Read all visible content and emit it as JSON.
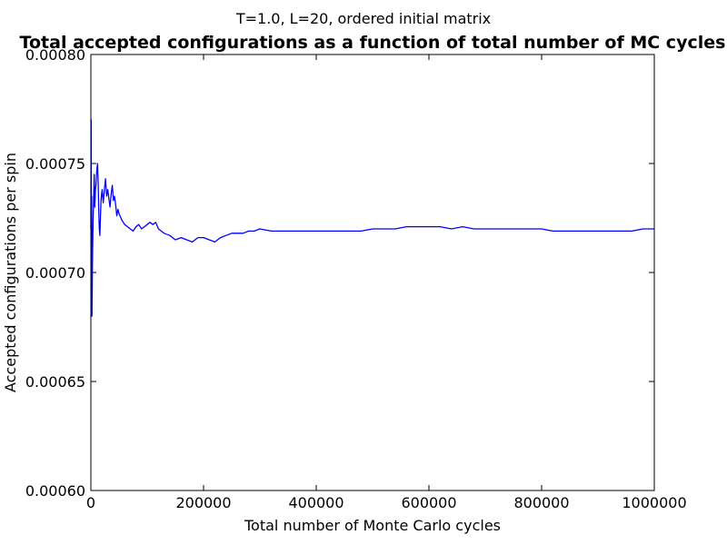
{
  "chart_data": {
    "type": "line",
    "suptitle": "T=1.0, L=20, ordered initial matrix",
    "title": "Total accepted configurations as a function of total number of MC cycles",
    "xlabel": "Total number of Monte Carlo cycles",
    "ylabel": "Accepted configurations per spin",
    "xlim": [
      0,
      1000000
    ],
    "ylim": [
      0.0006,
      0.0008
    ],
    "xticks": [
      0,
      200000,
      400000,
      600000,
      800000,
      1000000
    ],
    "xtick_labels": [
      "0",
      "200000",
      "400000",
      "600000",
      "800000",
      "1000000"
    ],
    "yticks": [
      0.0006,
      0.00065,
      0.0007,
      0.00075,
      0.0008
    ],
    "ytick_labels": [
      "0.00060",
      "0.00065",
      "0.00070",
      "0.00075",
      "0.00080"
    ],
    "grid": false,
    "line_color": "#0000ff",
    "series": [
      {
        "x": [
          0,
          500,
          1000,
          1500,
          2000,
          3000,
          4000,
          5000,
          6000,
          7000,
          8000,
          9000,
          10000,
          11000,
          12000,
          13000,
          14000,
          15000,
          16000,
          17000,
          18000,
          19000,
          20000,
          22000,
          24000,
          26000,
          28000,
          30000,
          32000,
          34000,
          36000,
          38000,
          40000,
          42000,
          44000,
          46000,
          48000,
          50000,
          55000,
          60000,
          65000,
          70000,
          75000,
          80000,
          85000,
          90000,
          95000,
          100000,
          105000,
          110000,
          115000,
          120000,
          130000,
          140000,
          150000,
          160000,
          170000,
          180000,
          190000,
          200000,
          210000,
          220000,
          230000,
          240000,
          250000,
          260000,
          270000,
          280000,
          290000,
          300000,
          320000,
          340000,
          360000,
          380000,
          400000,
          420000,
          440000,
          460000,
          480000,
          500000,
          520000,
          540000,
          560000,
          580000,
          600000,
          620000,
          640000,
          660000,
          680000,
          700000,
          720000,
          740000,
          760000,
          780000,
          800000,
          820000,
          840000,
          860000,
          880000,
          900000,
          920000,
          940000,
          960000,
          980000,
          1000000
        ],
        "y": [
          0.00072,
          0.00077,
          0.00068,
          0.000735,
          0.00068,
          0.00071,
          0.000725,
          0.000735,
          0.000745,
          0.00073,
          0.000738,
          0.00074,
          0.000745,
          0.000748,
          0.00075,
          0.00074,
          0.000728,
          0.00072,
          0.000717,
          0.000725,
          0.000733,
          0.000736,
          0.000738,
          0.000732,
          0.000738,
          0.000743,
          0.000735,
          0.000738,
          0.000734,
          0.00073,
          0.000736,
          0.00074,
          0.000733,
          0.000735,
          0.000731,
          0.000726,
          0.000729,
          0.000727,
          0.000724,
          0.000722,
          0.000721,
          0.00072,
          0.000719,
          0.000721,
          0.000722,
          0.00072,
          0.000721,
          0.000722,
          0.000723,
          0.000722,
          0.000723,
          0.00072,
          0.000718,
          0.000717,
          0.000715,
          0.000716,
          0.000715,
          0.000714,
          0.000716,
          0.000716,
          0.000715,
          0.000714,
          0.000716,
          0.000717,
          0.000718,
          0.000718,
          0.000718,
          0.000719,
          0.000719,
          0.00072,
          0.000719,
          0.000719,
          0.000719,
          0.000719,
          0.000719,
          0.000719,
          0.000719,
          0.000719,
          0.000719,
          0.00072,
          0.00072,
          0.00072,
          0.000721,
          0.000721,
          0.000721,
          0.000721,
          0.00072,
          0.000721,
          0.00072,
          0.00072,
          0.00072,
          0.00072,
          0.00072,
          0.00072,
          0.00072,
          0.000719,
          0.000719,
          0.000719,
          0.000719,
          0.000719,
          0.000719,
          0.000719,
          0.000719,
          0.00072,
          0.00072
        ]
      }
    ]
  }
}
